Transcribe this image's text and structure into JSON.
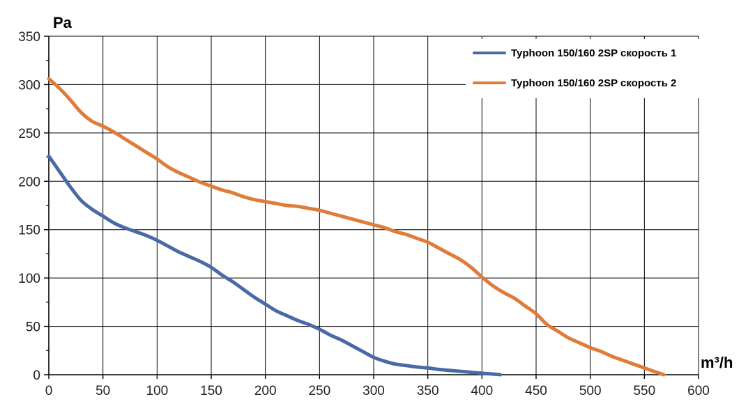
{
  "chart_data": {
    "type": "line",
    "xlabel": "m³/h",
    "ylabel": "Pa",
    "xlim": [
      0,
      600
    ],
    "ylim": [
      0,
      350
    ],
    "x_ticks": [
      0,
      50,
      100,
      150,
      200,
      250,
      300,
      350,
      400,
      450,
      500,
      550,
      600
    ],
    "y_ticks": [
      0,
      50,
      100,
      150,
      200,
      250,
      300,
      350
    ],
    "x_tick_labels": [
      "0",
      "50",
      "100",
      "150",
      "200",
      "250",
      "300",
      "350",
      "400",
      "450",
      "500",
      "550",
      "600"
    ],
    "y_tick_labels": [
      "0",
      "50",
      "100",
      "150",
      "200",
      "250",
      "300",
      "350"
    ],
    "grid": true,
    "legend_position": "top-right",
    "series": [
      {
        "name": "Typhoon 150/160 2SP скорость 1",
        "color": "#4a6aa6",
        "points": [
          [
            0,
            226
          ],
          [
            10,
            210
          ],
          [
            20,
            194
          ],
          [
            30,
            180
          ],
          [
            40,
            171
          ],
          [
            50,
            164
          ],
          [
            60,
            157
          ],
          [
            70,
            152
          ],
          [
            80,
            148
          ],
          [
            90,
            144
          ],
          [
            100,
            139
          ],
          [
            110,
            133
          ],
          [
            120,
            127
          ],
          [
            130,
            122
          ],
          [
            140,
            117
          ],
          [
            150,
            111
          ],
          [
            160,
            103
          ],
          [
            170,
            96
          ],
          [
            180,
            88
          ],
          [
            190,
            80
          ],
          [
            200,
            73
          ],
          [
            210,
            66
          ],
          [
            220,
            61
          ],
          [
            230,
            56
          ],
          [
            240,
            52
          ],
          [
            250,
            47
          ],
          [
            260,
            41
          ],
          [
            270,
            36
          ],
          [
            280,
            30
          ],
          [
            290,
            24
          ],
          [
            300,
            18
          ],
          [
            310,
            14
          ],
          [
            320,
            11
          ],
          [
            330,
            9.5
          ],
          [
            340,
            8
          ],
          [
            350,
            7
          ],
          [
            360,
            5.5
          ],
          [
            370,
            4.5
          ],
          [
            380,
            3.5
          ],
          [
            390,
            2.5
          ],
          [
            400,
            1.5
          ],
          [
            410,
            0.7
          ],
          [
            417,
            0
          ]
        ]
      },
      {
        "name": "Typhoon 150/160 2SP скорость 2",
        "color": "#e07b39",
        "points": [
          [
            0,
            306
          ],
          [
            10,
            296
          ],
          [
            20,
            284
          ],
          [
            30,
            271
          ],
          [
            40,
            262
          ],
          [
            50,
            257
          ],
          [
            60,
            251
          ],
          [
            70,
            244
          ],
          [
            80,
            237
          ],
          [
            90,
            230
          ],
          [
            100,
            223
          ],
          [
            110,
            215
          ],
          [
            120,
            209
          ],
          [
            130,
            204
          ],
          [
            140,
            199
          ],
          [
            150,
            195
          ],
          [
            160,
            191
          ],
          [
            170,
            188
          ],
          [
            180,
            184
          ],
          [
            190,
            181
          ],
          [
            200,
            179
          ],
          [
            210,
            177
          ],
          [
            220,
            175
          ],
          [
            230,
            174
          ],
          [
            240,
            172
          ],
          [
            250,
            170
          ],
          [
            260,
            167
          ],
          [
            270,
            164
          ],
          [
            280,
            161
          ],
          [
            290,
            158
          ],
          [
            300,
            155
          ],
          [
            310,
            152
          ],
          [
            320,
            148
          ],
          [
            330,
            145
          ],
          [
            340,
            141
          ],
          [
            350,
            137
          ],
          [
            360,
            131
          ],
          [
            370,
            125
          ],
          [
            380,
            119
          ],
          [
            390,
            111
          ],
          [
            400,
            101
          ],
          [
            410,
            92
          ],
          [
            420,
            85
          ],
          [
            430,
            79
          ],
          [
            440,
            71
          ],
          [
            450,
            63
          ],
          [
            460,
            52
          ],
          [
            470,
            45
          ],
          [
            480,
            38
          ],
          [
            490,
            33
          ],
          [
            500,
            28
          ],
          [
            510,
            24
          ],
          [
            520,
            19
          ],
          [
            530,
            15
          ],
          [
            540,
            11
          ],
          [
            550,
            7
          ],
          [
            560,
            3
          ],
          [
            568,
            0
          ]
        ]
      }
    ]
  }
}
